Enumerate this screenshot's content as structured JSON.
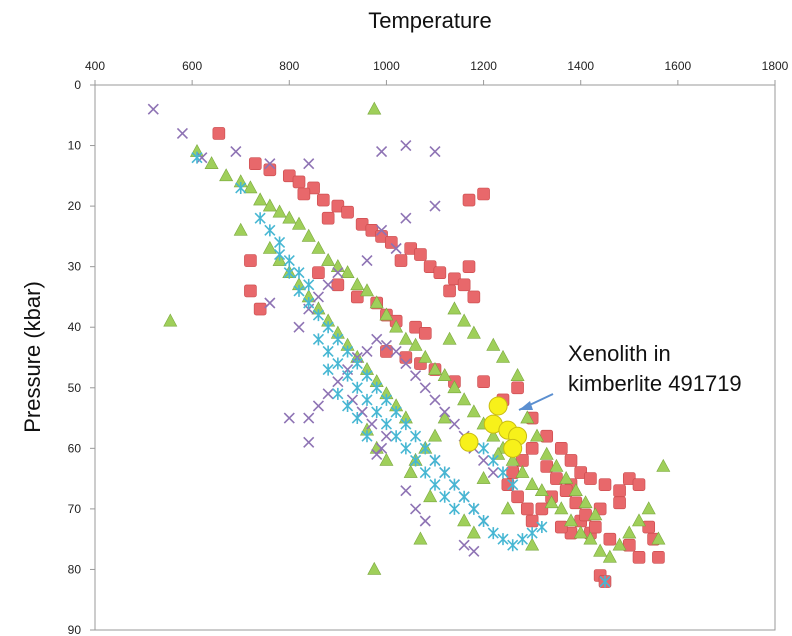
{
  "chart_data": {
    "type": "scatter",
    "title": "",
    "xlabel": "Temperature",
    "ylabel": "Pressure (kbar)",
    "xlim": [
      400,
      1800
    ],
    "ylim": [
      0,
      90
    ],
    "x_axis_position": "top",
    "y_axis_inverted": true,
    "x_ticks": [
      400,
      600,
      800,
      1000,
      1200,
      1400,
      1600,
      1800
    ],
    "y_ticks": [
      0,
      10,
      20,
      30,
      40,
      50,
      60,
      70,
      80,
      90
    ],
    "grid": false,
    "legend": "none",
    "annotation": {
      "lines": [
        "Xenolith in",
        "kimberlite 491719"
      ],
      "arrow_to": [
        1250,
        57
      ]
    },
    "series": [
      {
        "marker": "square",
        "color": "#e8686b",
        "points": [
          [
            655,
            8
          ],
          [
            730,
            13
          ],
          [
            760,
            14
          ],
          [
            800,
            15
          ],
          [
            820,
            16
          ],
          [
            850,
            17
          ],
          [
            830,
            18
          ],
          [
            870,
            19
          ],
          [
            900,
            20
          ],
          [
            920,
            21
          ],
          [
            880,
            22
          ],
          [
            950,
            23
          ],
          [
            970,
            24
          ],
          [
            990,
            25
          ],
          [
            1010,
            26
          ],
          [
            1050,
            27
          ],
          [
            1070,
            28
          ],
          [
            1030,
            29
          ],
          [
            1090,
            30
          ],
          [
            1110,
            31
          ],
          [
            1140,
            32
          ],
          [
            1160,
            33
          ],
          [
            1130,
            34
          ],
          [
            1180,
            35
          ],
          [
            1170,
            19
          ],
          [
            1200,
            18
          ],
          [
            1170,
            30
          ],
          [
            720,
            29
          ],
          [
            720,
            34
          ],
          [
            740,
            37
          ],
          [
            860,
            31
          ],
          [
            900,
            33
          ],
          [
            940,
            35
          ],
          [
            980,
            36
          ],
          [
            1000,
            38
          ],
          [
            1020,
            39
          ],
          [
            1060,
            40
          ],
          [
            1080,
            41
          ],
          [
            1000,
            44
          ],
          [
            1040,
            45
          ],
          [
            1070,
            46
          ],
          [
            1100,
            47
          ],
          [
            1140,
            49
          ],
          [
            1270,
            50
          ],
          [
            1200,
            49
          ],
          [
            1240,
            52
          ],
          [
            1300,
            55
          ],
          [
            1330,
            58
          ],
          [
            1360,
            60
          ],
          [
            1380,
            62
          ],
          [
            1400,
            64
          ],
          [
            1420,
            65
          ],
          [
            1450,
            66
          ],
          [
            1480,
            67
          ],
          [
            1500,
            65
          ],
          [
            1520,
            66
          ],
          [
            1480,
            69
          ],
          [
            1440,
            70
          ],
          [
            1400,
            72
          ],
          [
            1380,
            74
          ],
          [
            1360,
            73
          ],
          [
            1420,
            74
          ],
          [
            1460,
            75
          ],
          [
            1500,
            76
          ],
          [
            1540,
            73
          ],
          [
            1550,
            75
          ],
          [
            1560,
            78
          ],
          [
            1520,
            78
          ],
          [
            1440,
            81
          ],
          [
            1450,
            82
          ],
          [
            1320,
            70
          ],
          [
            1300,
            72
          ],
          [
            1340,
            68
          ],
          [
            1380,
            66
          ],
          [
            1260,
            64
          ],
          [
            1280,
            62
          ],
          [
            1300,
            60
          ],
          [
            1330,
            63
          ],
          [
            1350,
            65
          ],
          [
            1370,
            67
          ],
          [
            1390,
            69
          ],
          [
            1410,
            71
          ],
          [
            1430,
            73
          ],
          [
            1250,
            66
          ],
          [
            1270,
            68
          ],
          [
            1290,
            70
          ]
        ]
      },
      {
        "marker": "triangle",
        "color": "#9fcf5a",
        "points": [
          [
            975,
            4
          ],
          [
            610,
            11
          ],
          [
            640,
            13
          ],
          [
            670,
            15
          ],
          [
            700,
            16
          ],
          [
            720,
            17
          ],
          [
            740,
            19
          ],
          [
            760,
            20
          ],
          [
            780,
            21
          ],
          [
            800,
            22
          ],
          [
            820,
            23
          ],
          [
            840,
            25
          ],
          [
            700,
            24
          ],
          [
            860,
            27
          ],
          [
            880,
            29
          ],
          [
            900,
            30
          ],
          [
            920,
            31
          ],
          [
            940,
            33
          ],
          [
            960,
            34
          ],
          [
            980,
            36
          ],
          [
            1000,
            38
          ],
          [
            1020,
            40
          ],
          [
            1040,
            42
          ],
          [
            1060,
            43
          ],
          [
            1080,
            45
          ],
          [
            1100,
            47
          ],
          [
            1120,
            48
          ],
          [
            1140,
            50
          ],
          [
            1160,
            52
          ],
          [
            1180,
            54
          ],
          [
            1200,
            56
          ],
          [
            1220,
            58
          ],
          [
            1240,
            60
          ],
          [
            1260,
            62
          ],
          [
            1280,
            64
          ],
          [
            1300,
            66
          ],
          [
            1320,
            67
          ],
          [
            1340,
            69
          ],
          [
            1360,
            70
          ],
          [
            1380,
            72
          ],
          [
            1400,
            74
          ],
          [
            1420,
            75
          ],
          [
            1440,
            77
          ],
          [
            1460,
            78
          ],
          [
            1480,
            76
          ],
          [
            1500,
            74
          ],
          [
            1520,
            72
          ],
          [
            1540,
            70
          ],
          [
            1560,
            75
          ],
          [
            1570,
            63
          ],
          [
            555,
            39
          ],
          [
            975,
            80
          ],
          [
            1090,
            68
          ],
          [
            1070,
            75
          ],
          [
            1160,
            72
          ],
          [
            1180,
            74
          ],
          [
            1250,
            70
          ],
          [
            1300,
            76
          ],
          [
            1200,
            65
          ],
          [
            1230,
            61
          ],
          [
            1260,
            57
          ],
          [
            1290,
            55
          ],
          [
            1310,
            58
          ],
          [
            1330,
            61
          ],
          [
            1350,
            63
          ],
          [
            1370,
            65
          ],
          [
            1390,
            67
          ],
          [
            1410,
            69
          ],
          [
            1430,
            71
          ],
          [
            1240,
            45
          ],
          [
            1220,
            43
          ],
          [
            1180,
            41
          ],
          [
            1160,
            39
          ],
          [
            1140,
            37
          ],
          [
            1130,
            42
          ],
          [
            1270,
            48
          ],
          [
            1120,
            55
          ],
          [
            1100,
            58
          ],
          [
            1080,
            60
          ],
          [
            1060,
            62
          ],
          [
            1050,
            64
          ],
          [
            760,
            27
          ],
          [
            780,
            29
          ],
          [
            800,
            31
          ],
          [
            820,
            33
          ],
          [
            840,
            35
          ],
          [
            860,
            37
          ],
          [
            880,
            39
          ],
          [
            900,
            41
          ],
          [
            920,
            43
          ],
          [
            940,
            45
          ],
          [
            960,
            47
          ],
          [
            980,
            49
          ],
          [
            1000,
            51
          ],
          [
            1020,
            53
          ],
          [
            1040,
            55
          ],
          [
            960,
            57
          ],
          [
            980,
            60
          ],
          [
            1000,
            62
          ]
        ]
      },
      {
        "marker": "x",
        "color": "#8e73b4",
        "points": [
          [
            520,
            4
          ],
          [
            580,
            8
          ],
          [
            620,
            12
          ],
          [
            690,
            11
          ],
          [
            760,
            13
          ],
          [
            840,
            13
          ],
          [
            990,
            11
          ],
          [
            1040,
            10
          ],
          [
            1100,
            11
          ],
          [
            1100,
            20
          ],
          [
            1040,
            22
          ],
          [
            990,
            24
          ],
          [
            1020,
            27
          ],
          [
            960,
            29
          ],
          [
            900,
            31
          ],
          [
            880,
            33
          ],
          [
            860,
            35
          ],
          [
            840,
            37
          ],
          [
            820,
            40
          ],
          [
            760,
            36
          ],
          [
            800,
            55
          ],
          [
            840,
            59
          ],
          [
            840,
            55
          ],
          [
            860,
            53
          ],
          [
            880,
            51
          ],
          [
            900,
            49
          ],
          [
            920,
            47
          ],
          [
            940,
            45
          ],
          [
            960,
            44
          ],
          [
            980,
            42
          ],
          [
            1000,
            43
          ],
          [
            1020,
            44
          ],
          [
            1040,
            46
          ],
          [
            1060,
            48
          ],
          [
            1080,
            50
          ],
          [
            1100,
            52
          ],
          [
            1120,
            54
          ],
          [
            1140,
            56
          ],
          [
            1160,
            58
          ],
          [
            1180,
            60
          ],
          [
            1200,
            62
          ],
          [
            1220,
            64
          ],
          [
            1100,
            62
          ],
          [
            1120,
            64
          ],
          [
            1140,
            66
          ],
          [
            1160,
            68
          ],
          [
            1180,
            70
          ],
          [
            1200,
            72
          ],
          [
            1160,
            76
          ],
          [
            1180,
            77
          ],
          [
            1000,
            58
          ],
          [
            980,
            61
          ],
          [
            1040,
            67
          ],
          [
            1060,
            70
          ],
          [
            1080,
            72
          ],
          [
            930,
            52
          ],
          [
            950,
            54
          ],
          [
            970,
            56
          ],
          [
            990,
            60
          ]
        ]
      },
      {
        "marker": "asterisk",
        "color": "#47b7d3",
        "points": [
          [
            610,
            12
          ],
          [
            700,
            17
          ],
          [
            740,
            22
          ],
          [
            780,
            28
          ],
          [
            800,
            31
          ],
          [
            820,
            34
          ],
          [
            840,
            36
          ],
          [
            860,
            38
          ],
          [
            880,
            40
          ],
          [
            900,
            42
          ],
          [
            920,
            44
          ],
          [
            940,
            46
          ],
          [
            960,
            48
          ],
          [
            980,
            50
          ],
          [
            1000,
            52
          ],
          [
            1020,
            54
          ],
          [
            1040,
            56
          ],
          [
            1060,
            58
          ],
          [
            1080,
            60
          ],
          [
            1100,
            62
          ],
          [
            1120,
            64
          ],
          [
            1140,
            66
          ],
          [
            1160,
            68
          ],
          [
            1180,
            70
          ],
          [
            1200,
            72
          ],
          [
            1220,
            74
          ],
          [
            1240,
            75
          ],
          [
            1260,
            76
          ],
          [
            1280,
            75
          ],
          [
            1300,
            74
          ],
          [
            1320,
            73
          ],
          [
            880,
            44
          ],
          [
            900,
            46
          ],
          [
            920,
            48
          ],
          [
            940,
            50
          ],
          [
            960,
            52
          ],
          [
            980,
            54
          ],
          [
            1000,
            56
          ],
          [
            1020,
            58
          ],
          [
            1040,
            60
          ],
          [
            1060,
            62
          ],
          [
            1080,
            64
          ],
          [
            1100,
            66
          ],
          [
            1120,
            68
          ],
          [
            1140,
            70
          ],
          [
            760,
            24
          ],
          [
            780,
            26
          ],
          [
            800,
            29
          ],
          [
            820,
            31
          ],
          [
            840,
            33
          ],
          [
            860,
            42
          ],
          [
            880,
            47
          ],
          [
            900,
            51
          ],
          [
            920,
            53
          ],
          [
            940,
            55
          ],
          [
            960,
            58
          ],
          [
            1450,
            82
          ],
          [
            1200,
            60
          ],
          [
            1220,
            62
          ],
          [
            1240,
            64
          ],
          [
            1260,
            66
          ]
        ]
      },
      {
        "marker": "circle",
        "color": "#f7f11a",
        "points": [
          [
            1230,
            53
          ],
          [
            1220,
            56
          ],
          [
            1250,
            57
          ],
          [
            1270,
            58
          ],
          [
            1260,
            60
          ],
          [
            1170,
            59
          ]
        ]
      }
    ]
  }
}
